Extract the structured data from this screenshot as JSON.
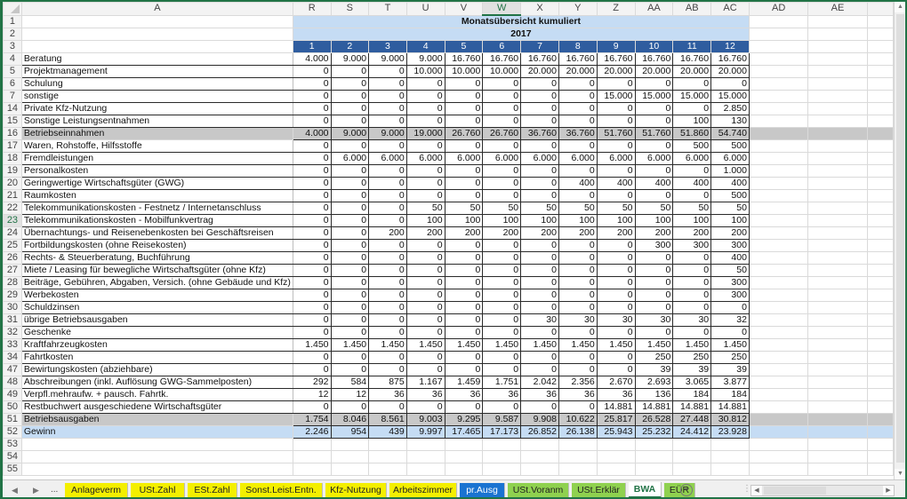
{
  "sheet": {
    "column_headers": [
      "A",
      "R",
      "S",
      "T",
      "U",
      "V",
      "W",
      "X",
      "Y",
      "Z",
      "AA",
      "AB",
      "AC",
      "AD",
      "AE"
    ],
    "active_column": "W",
    "active_row": "23",
    "title": "Monatsübersicht kumuliert",
    "year": "2017",
    "months": [
      "1",
      "2",
      "3",
      "4",
      "5",
      "6",
      "7",
      "8",
      "9",
      "10",
      "11",
      "12"
    ],
    "header_rows": [
      "1",
      "2",
      "3"
    ],
    "rows": [
      {
        "num": "4",
        "label": "Beratung",
        "type": "data",
        "values": [
          "4.000",
          "9.000",
          "9.000",
          "9.000",
          "16.760",
          "16.760",
          "16.760",
          "16.760",
          "16.760",
          "16.760",
          "16.760",
          "16.760"
        ]
      },
      {
        "num": "5",
        "label": "Projektmanagement",
        "type": "data",
        "values": [
          "0",
          "0",
          "0",
          "10.000",
          "10.000",
          "10.000",
          "20.000",
          "20.000",
          "20.000",
          "20.000",
          "20.000",
          "20.000"
        ]
      },
      {
        "num": "6",
        "label": "Schulung",
        "type": "data",
        "values": [
          "0",
          "0",
          "0",
          "0",
          "0",
          "0",
          "0",
          "0",
          "0",
          "0",
          "0",
          "0"
        ]
      },
      {
        "num": "7",
        "label": "sonstige",
        "type": "data",
        "values": [
          "0",
          "0",
          "0",
          "0",
          "0",
          "0",
          "0",
          "0",
          "15.000",
          "15.000",
          "15.000",
          "15.000"
        ]
      },
      {
        "num": "14",
        "label": "Private Kfz-Nutzung",
        "type": "data",
        "values": [
          "0",
          "0",
          "0",
          "0",
          "0",
          "0",
          "0",
          "0",
          "0",
          "0",
          "0",
          "2.850"
        ]
      },
      {
        "num": "15",
        "label": "Sonstige Leistungsentnahmen",
        "type": "data",
        "values": [
          "0",
          "0",
          "0",
          "0",
          "0",
          "0",
          "0",
          "0",
          "0",
          "0",
          "100",
          "130"
        ]
      },
      {
        "num": "16",
        "label": "Betriebseinnahmen",
        "type": "sum",
        "values": [
          "4.000",
          "9.000",
          "9.000",
          "19.000",
          "26.760",
          "26.760",
          "36.760",
          "36.760",
          "51.760",
          "51.760",
          "51.860",
          "54.740"
        ]
      },
      {
        "num": "17",
        "label": "Waren, Rohstoffe, Hilfsstoffe",
        "type": "data",
        "values": [
          "0",
          "0",
          "0",
          "0",
          "0",
          "0",
          "0",
          "0",
          "0",
          "0",
          "500",
          "500"
        ]
      },
      {
        "num": "18",
        "label": "Fremdleistungen",
        "type": "data",
        "values": [
          "0",
          "6.000",
          "6.000",
          "6.000",
          "6.000",
          "6.000",
          "6.000",
          "6.000",
          "6.000",
          "6.000",
          "6.000",
          "6.000"
        ]
      },
      {
        "num": "19",
        "label": "Personalkosten",
        "type": "data",
        "values": [
          "0",
          "0",
          "0",
          "0",
          "0",
          "0",
          "0",
          "0",
          "0",
          "0",
          "0",
          "1.000"
        ]
      },
      {
        "num": "20",
        "label": "Geringwertige Wirtschaftsgüter (GWG)",
        "type": "data",
        "values": [
          "0",
          "0",
          "0",
          "0",
          "0",
          "0",
          "0",
          "400",
          "400",
          "400",
          "400",
          "400"
        ]
      },
      {
        "num": "21",
        "label": "Raumkosten",
        "type": "data",
        "values": [
          "0",
          "0",
          "0",
          "0",
          "0",
          "0",
          "0",
          "0",
          "0",
          "0",
          "0",
          "500"
        ]
      },
      {
        "num": "22",
        "label": "Telekommunikationskosten - Festnetz / Internetanschluss",
        "type": "data",
        "values": [
          "0",
          "0",
          "0",
          "50",
          "50",
          "50",
          "50",
          "50",
          "50",
          "50",
          "50",
          "50"
        ]
      },
      {
        "num": "23",
        "label": "Telekommunikationskosten - Mobilfunkvertrag",
        "type": "data",
        "values": [
          "0",
          "0",
          "0",
          "100",
          "100",
          "100",
          "100",
          "100",
          "100",
          "100",
          "100",
          "100"
        ]
      },
      {
        "num": "24",
        "label": "Übernachtungs- und Reisenebenkosten bei Geschäftsreisen",
        "type": "data",
        "values": [
          "0",
          "0",
          "200",
          "200",
          "200",
          "200",
          "200",
          "200",
          "200",
          "200",
          "200",
          "200"
        ]
      },
      {
        "num": "25",
        "label": "Fortbildungskosten (ohne Reisekosten)",
        "type": "data",
        "values": [
          "0",
          "0",
          "0",
          "0",
          "0",
          "0",
          "0",
          "0",
          "0",
          "300",
          "300",
          "300"
        ]
      },
      {
        "num": "26",
        "label": "Rechts- & Steuerberatung, Buchführung",
        "type": "data",
        "values": [
          "0",
          "0",
          "0",
          "0",
          "0",
          "0",
          "0",
          "0",
          "0",
          "0",
          "0",
          "400"
        ]
      },
      {
        "num": "27",
        "label": "Miete / Leasing für bewegliche Wirtschaftsgüter (ohne Kfz)",
        "type": "data",
        "values": [
          "0",
          "0",
          "0",
          "0",
          "0",
          "0",
          "0",
          "0",
          "0",
          "0",
          "0",
          "50"
        ]
      },
      {
        "num": "28",
        "label": "Beiträge, Gebühren, Abgaben, Versich. (ohne Gebäude und Kfz)",
        "type": "data",
        "values": [
          "0",
          "0",
          "0",
          "0",
          "0",
          "0",
          "0",
          "0",
          "0",
          "0",
          "0",
          "300"
        ]
      },
      {
        "num": "29",
        "label": "Werbekosten",
        "type": "data",
        "values": [
          "0",
          "0",
          "0",
          "0",
          "0",
          "0",
          "0",
          "0",
          "0",
          "0",
          "0",
          "300"
        ]
      },
      {
        "num": "30",
        "label": "Schuldzinsen",
        "type": "data",
        "values": [
          "0",
          "0",
          "0",
          "0",
          "0",
          "0",
          "0",
          "0",
          "0",
          "0",
          "0",
          "0"
        ]
      },
      {
        "num": "31",
        "label": "übrige Betriebsausgaben",
        "type": "data",
        "values": [
          "0",
          "0",
          "0",
          "0",
          "0",
          "0",
          "30",
          "30",
          "30",
          "30",
          "30",
          "32"
        ]
      },
      {
        "num": "32",
        "label": "Geschenke",
        "type": "data",
        "values": [
          "0",
          "0",
          "0",
          "0",
          "0",
          "0",
          "0",
          "0",
          "0",
          "0",
          "0",
          "0"
        ]
      },
      {
        "num": "33",
        "label": "Kraftfahrzeugkosten",
        "type": "data",
        "values": [
          "1.450",
          "1.450",
          "1.450",
          "1.450",
          "1.450",
          "1.450",
          "1.450",
          "1.450",
          "1.450",
          "1.450",
          "1.450",
          "1.450"
        ]
      },
      {
        "num": "34",
        "label": "Fahrtkosten",
        "type": "data",
        "values": [
          "0",
          "0",
          "0",
          "0",
          "0",
          "0",
          "0",
          "0",
          "0",
          "250",
          "250",
          "250"
        ]
      },
      {
        "num": "47",
        "label": "Bewirtungskosten (abziehbare)",
        "type": "data",
        "values": [
          "0",
          "0",
          "0",
          "0",
          "0",
          "0",
          "0",
          "0",
          "0",
          "39",
          "39",
          "39"
        ]
      },
      {
        "num": "48",
        "label": "Abschreibungen (inkl. Auflösung GWG-Sammelposten)",
        "type": "data",
        "values": [
          "292",
          "584",
          "875",
          "1.167",
          "1.459",
          "1.751",
          "2.042",
          "2.356",
          "2.670",
          "2.693",
          "3.065",
          "3.877"
        ]
      },
      {
        "num": "49",
        "label": "Verpfl.mehraufw. + pausch. Fahrtk.",
        "type": "data",
        "values": [
          "12",
          "12",
          "36",
          "36",
          "36",
          "36",
          "36",
          "36",
          "36",
          "136",
          "184",
          "184"
        ]
      },
      {
        "num": "50",
        "label": "Restbuchwert ausgeschiedene Wirtschaftsgüter",
        "type": "data",
        "values": [
          "0",
          "0",
          "0",
          "0",
          "0",
          "0",
          "0",
          "0",
          "14.881",
          "14.881",
          "14.881",
          "14.881"
        ]
      },
      {
        "num": "51",
        "label": "Betriebsausgaben",
        "type": "sum",
        "values": [
          "1.754",
          "8.046",
          "8.561",
          "9.003",
          "9.295",
          "9.587",
          "9.908",
          "10.622",
          "25.817",
          "26.528",
          "27.448",
          "30.812"
        ]
      },
      {
        "num": "52",
        "label": "Gewinn",
        "type": "gain",
        "values": [
          "2.246",
          "954",
          "439",
          "9.997",
          "17.465",
          "17.173",
          "26.852",
          "26.138",
          "25.943",
          "25.232",
          "24.412",
          "23.928"
        ]
      }
    ],
    "empty_rows": [
      "53",
      "54",
      "55"
    ]
  },
  "tabs": {
    "nav_prev": "◀",
    "nav_next": "▶",
    "more": "...",
    "items": [
      {
        "label": "Anlageverm",
        "color": "yellow"
      },
      {
        "label": "USt.Zahl",
        "color": "yellow"
      },
      {
        "label": "ESt.Zahl",
        "color": "yellow"
      },
      {
        "label": "Sonst.Leist.Entn.",
        "color": "yellow"
      },
      {
        "label": "Kfz-Nutzung",
        "color": "yellow"
      },
      {
        "label": "Arbeitszimmer",
        "color": "yellow"
      },
      {
        "label": "pr.Ausg",
        "color": "blue"
      },
      {
        "label": "USt.Voranm",
        "color": "green"
      },
      {
        "label": "USt.Erklär",
        "color": "green"
      },
      {
        "label": "BWA",
        "color": "active"
      },
      {
        "label": "EÜR",
        "color": "green"
      }
    ],
    "add_sheet": "+"
  },
  "colors": {
    "title_band": "#c5dcf4",
    "month_band": "#2f5d9f",
    "sum_row": "#c8c8c8",
    "gain_row": "#c5dcf4",
    "tab_yellow": "#f4ef00",
    "tab_blue": "#1a73d1",
    "tab_green": "#8fd14f",
    "excel_green": "#217346"
  }
}
